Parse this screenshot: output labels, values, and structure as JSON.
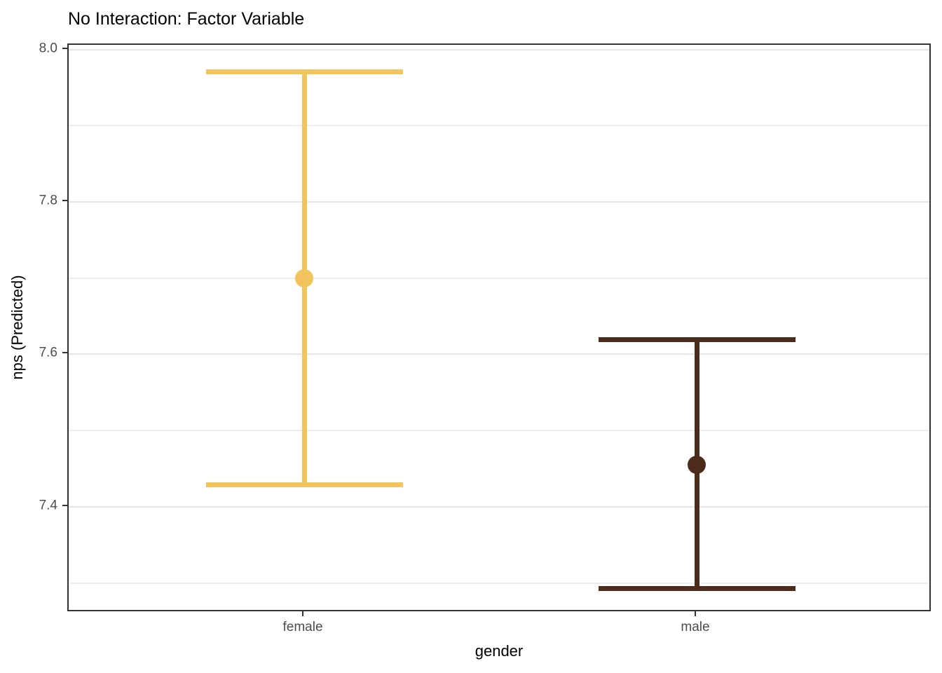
{
  "chart_data": {
    "type": "errorbar",
    "title": "No Interaction: Factor Variable",
    "xlabel": "gender",
    "ylabel": "nps (Predicted)",
    "categories": [
      "female",
      "male"
    ],
    "series": [
      {
        "name": "female",
        "color": "#F2C45E",
        "estimate": 7.7,
        "ci_low": 7.429,
        "ci_high": 7.971
      },
      {
        "name": "male",
        "color": "#4B2B1A",
        "estimate": 7.455,
        "ci_low": 7.293,
        "ci_high": 7.619
      }
    ],
    "y_tick_labels": [
      "8.0",
      "7.8",
      "7.6",
      "7.4"
    ],
    "y_ticks": [
      8.0,
      7.8,
      7.6,
      7.4
    ],
    "y_minor_ticks": [
      7.9,
      7.7,
      7.5,
      7.3
    ],
    "ylim": [
      7.261,
      8.006
    ],
    "grid": true,
    "legend": false,
    "colors": {
      "grid_major": "#E6E6E6",
      "grid_minor": "#EDEDED",
      "panel_border": "#333333",
      "tick_label": "#4D4D4D",
      "text": "#000000",
      "background": "#FFFFFF"
    }
  }
}
